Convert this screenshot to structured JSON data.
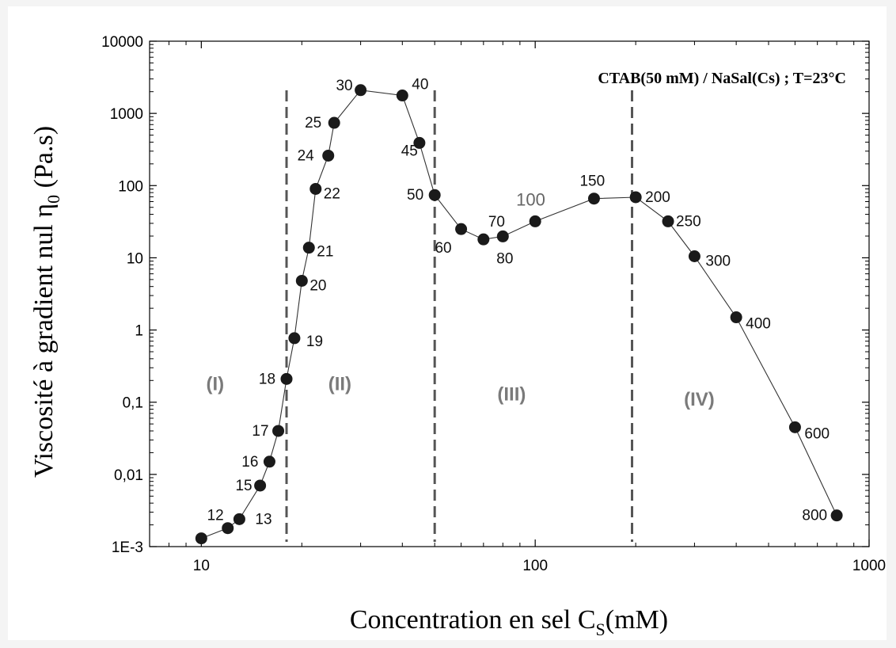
{
  "chart_data": {
    "type": "scatter",
    "title": "CTAB(50 mM) / NaSal(Cs) ; T=23°C",
    "xlabel": {
      "main": "Concentration en sel C",
      "sub": "S",
      "after": "(mM)"
    },
    "ylabel": {
      "main": "Viscosité à gradient nul η",
      "sub": "0",
      "after": " (Pa.s)"
    },
    "x_scale": "log",
    "y_scale": "log",
    "xlim": [
      7,
      1000
    ],
    "ylim": [
      0.001,
      10000
    ],
    "x_ticks": [
      {
        "value": 10,
        "label": "10"
      },
      {
        "value": 100,
        "label": "100"
      },
      {
        "value": 1000,
        "label": "1000"
      }
    ],
    "y_ticks": [
      {
        "value": 0.001,
        "label": "1E-3"
      },
      {
        "value": 0.01,
        "label": "0,01"
      },
      {
        "value": 0.1,
        "label": "0,1"
      },
      {
        "value": 1,
        "label": "1"
      },
      {
        "value": 10,
        "label": "10"
      },
      {
        "value": 100,
        "label": "100"
      },
      {
        "value": 1000,
        "label": "1000"
      },
      {
        "value": 10000,
        "label": "10000"
      }
    ],
    "series": [
      {
        "marker": "filled-circle",
        "color": "#1a1a1a",
        "line": "solid",
        "points": [
          {
            "x": 10,
            "y": 0.0013,
            "label": ""
          },
          {
            "x": 12,
            "y": 0.0018,
            "label": "12"
          },
          {
            "x": 13,
            "y": 0.0024,
            "label": "13"
          },
          {
            "x": 15,
            "y": 0.007,
            "label": "15"
          },
          {
            "x": 16,
            "y": 0.015,
            "label": "16"
          },
          {
            "x": 17,
            "y": 0.04,
            "label": "17"
          },
          {
            "x": 18,
            "y": 0.21,
            "label": "18"
          },
          {
            "x": 19,
            "y": 0.77,
            "label": "19"
          },
          {
            "x": 20,
            "y": 4.8,
            "label": "20"
          },
          {
            "x": 21,
            "y": 13.8,
            "label": "21"
          },
          {
            "x": 22,
            "y": 90,
            "label": "22"
          },
          {
            "x": 24,
            "y": 260,
            "label": "24"
          },
          {
            "x": 25,
            "y": 740,
            "label": "25"
          },
          {
            "x": 30,
            "y": 2100,
            "label": "30"
          },
          {
            "x": 40,
            "y": 1770,
            "label": "40"
          },
          {
            "x": 45,
            "y": 390,
            "label": "45"
          },
          {
            "x": 50,
            "y": 74,
            "label": "50"
          },
          {
            "x": 60,
            "y": 25,
            "label": "60"
          },
          {
            "x": 70,
            "y": 18,
            "label": "70"
          },
          {
            "x": 80,
            "y": 19.8,
            "label": "80"
          },
          {
            "x": 100,
            "y": 32,
            "label": "100"
          },
          {
            "x": 150,
            "y": 66,
            "label": "150"
          },
          {
            "x": 200,
            "y": 69,
            "label": "200"
          },
          {
            "x": 250,
            "y": 32,
            "label": "250"
          },
          {
            "x": 300,
            "y": 10.5,
            "label": "300"
          },
          {
            "x": 400,
            "y": 1.5,
            "label": "400"
          },
          {
            "x": 600,
            "y": 0.045,
            "label": "600"
          },
          {
            "x": 800,
            "y": 0.0027,
            "label": "800"
          }
        ]
      }
    ],
    "region_boundaries_x": [
      18,
      50,
      195
    ],
    "region_boundary_style": "dashed",
    "regions": [
      {
        "label": "(I)",
        "x": 11,
        "y": 0.18
      },
      {
        "label": "(II)",
        "x": 26,
        "y": 0.18
      },
      {
        "label": "(III)",
        "x": 85,
        "y": 0.13
      },
      {
        "label": "(IV)",
        "x": 310,
        "y": 0.11
      }
    ],
    "grid": false,
    "legend": "none"
  }
}
